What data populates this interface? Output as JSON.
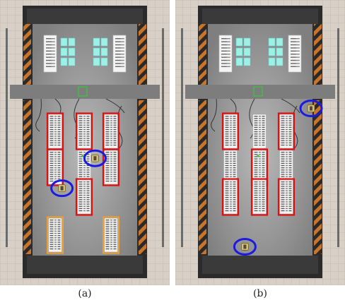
{
  "captions": [
    "(a)",
    "(b)"
  ],
  "colors": {
    "floor_tile": "#d8cfc6",
    "tile_line": "#bfb4a8",
    "room_dark": "#2b2b2b",
    "room_floor": "#8e8e8e",
    "corridor": "#7d7d7d",
    "hazard_orange": "#c8742a",
    "hazard_dark": "#2a2a2a",
    "red_highlight": "#e01010",
    "orange_highlight": "#f0a030",
    "blue_marker": "#1a1ae0",
    "panel_cyan": "#9cf0e4",
    "robot_yellow": "#d8c070",
    "green_target": "#33cc33"
  },
  "icons": [
    "shelf-rack-icon",
    "robot-icon",
    "charging-panel-icon",
    "target-square-icon"
  ],
  "panels": [
    {
      "id": "a",
      "red_racks": [
        {
          "col": 0,
          "row": 0
        },
        {
          "col": 1,
          "row": 0
        },
        {
          "col": 2,
          "row": 0
        },
        {
          "col": 0,
          "row": 1
        },
        {
          "col": 2,
          "row": 1
        },
        {
          "col": 1,
          "row": 2
        }
      ],
      "orange_racks": [
        0,
        1,
        2
      ],
      "robots": [
        {
          "fx": 0.56,
          "fy": 0.555
        },
        {
          "fx": 0.365,
          "fy": 0.66
        }
      ]
    },
    {
      "id": "b",
      "red_racks": [
        {
          "col": 0,
          "row": 0
        },
        {
          "col": 2,
          "row": 0
        },
        {
          "col": 1,
          "row": 1
        },
        {
          "col": 0,
          "row": 2
        },
        {
          "col": 1,
          "row": 2
        },
        {
          "col": 2,
          "row": 2
        }
      ],
      "orange_racks": [
        0,
        2
      ],
      "robots": [
        {
          "fx": 0.8,
          "fy": 0.38
        },
        {
          "fx": 0.41,
          "fy": 0.865
        }
      ]
    }
  ]
}
